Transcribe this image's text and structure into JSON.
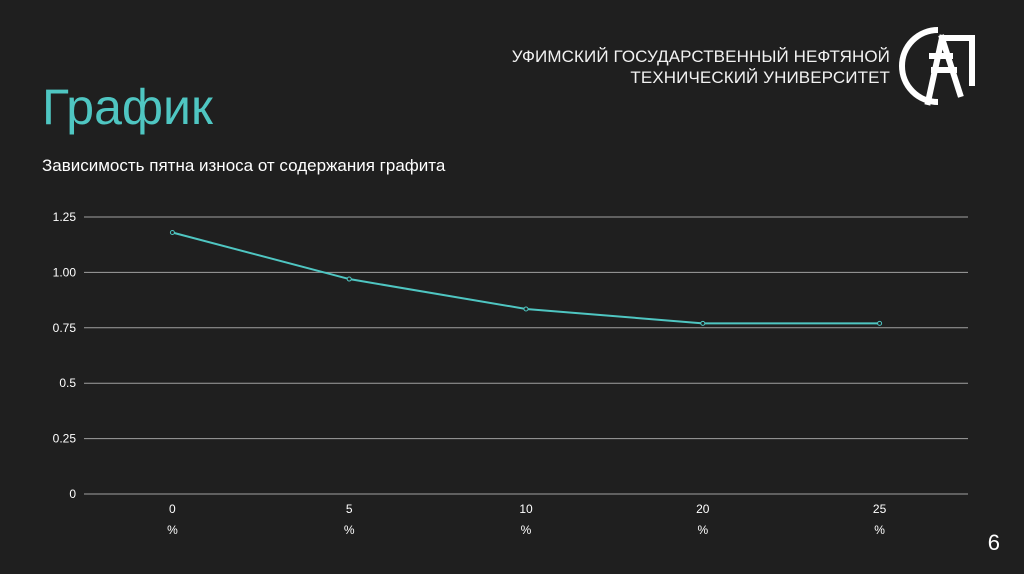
{
  "header": {
    "org_line1": "УФИМСКИЙ ГОСУДАРСТВЕННЫЙ НЕФТЯНОЙ",
    "org_line2": "ТЕХНИЧЕСКИЙ УНИВЕРСИТЕТ",
    "logo_icon": "university-logo-icon"
  },
  "slide": {
    "title": "График",
    "page_number": "6"
  },
  "colors": {
    "background": "#1f1f1f",
    "accent": "#4fc6c2",
    "gridline": "#a0a0a0",
    "text": "#ffffff"
  },
  "chart_data": {
    "type": "line",
    "title": "Зависимость пятна износа от содержания графита",
    "categories": [
      "0",
      "5",
      "10",
      "20",
      "25"
    ],
    "category_unit": "%",
    "series": [
      {
        "values": [
          1.18,
          0.97,
          0.835,
          0.77,
          0.77
        ]
      }
    ],
    "y_ticks": [
      "0",
      "0.25",
      "0.5",
      "0.75",
      "1.00",
      "1.25"
    ],
    "ylim": [
      0,
      1.25
    ],
    "grid": true,
    "legend": "none",
    "xlabel": "",
    "ylabel": ""
  }
}
